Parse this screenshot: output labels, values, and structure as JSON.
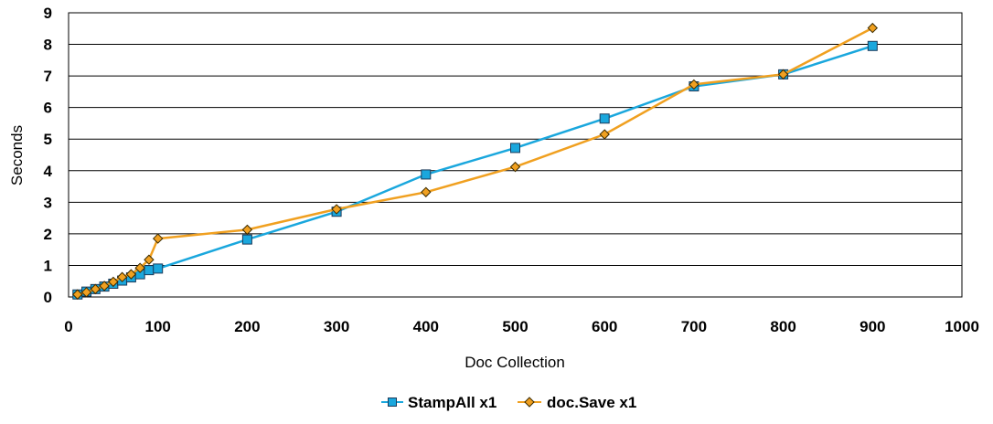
{
  "chart_data": {
    "type": "line",
    "xlabel": "Doc Collection",
    "ylabel": "Seconds",
    "xlim": [
      0,
      1000
    ],
    "ylim": [
      0,
      9
    ],
    "xticks": [
      0,
      100,
      200,
      300,
      400,
      500,
      600,
      700,
      800,
      900,
      1000
    ],
    "yticks": [
      0,
      1,
      2,
      3,
      4,
      5,
      6,
      7,
      8,
      9
    ],
    "grid": true,
    "legend": "bottom",
    "series": [
      {
        "name": "StampAll x1",
        "color": "#1aa7dd",
        "marker": "square",
        "x": [
          10,
          20,
          30,
          40,
          50,
          60,
          70,
          80,
          90,
          100,
          200,
          300,
          400,
          500,
          600,
          700,
          800,
          900
        ],
        "y": [
          0.08,
          0.17,
          0.25,
          0.33,
          0.42,
          0.52,
          0.62,
          0.72,
          0.85,
          0.9,
          1.82,
          2.7,
          3.88,
          4.72,
          5.65,
          6.67,
          7.05,
          7.95
        ]
      },
      {
        "name": "doc.Save x1",
        "color": "#f0a020",
        "marker": "diamond",
        "x": [
          10,
          20,
          30,
          40,
          50,
          60,
          70,
          80,
          90,
          100,
          200,
          300,
          400,
          500,
          600,
          700,
          800,
          900
        ],
        "y": [
          0.08,
          0.15,
          0.25,
          0.35,
          0.48,
          0.63,
          0.72,
          0.92,
          1.18,
          1.85,
          2.13,
          2.78,
          3.32,
          4.12,
          5.15,
          6.73,
          7.05,
          8.52
        ]
      }
    ]
  }
}
